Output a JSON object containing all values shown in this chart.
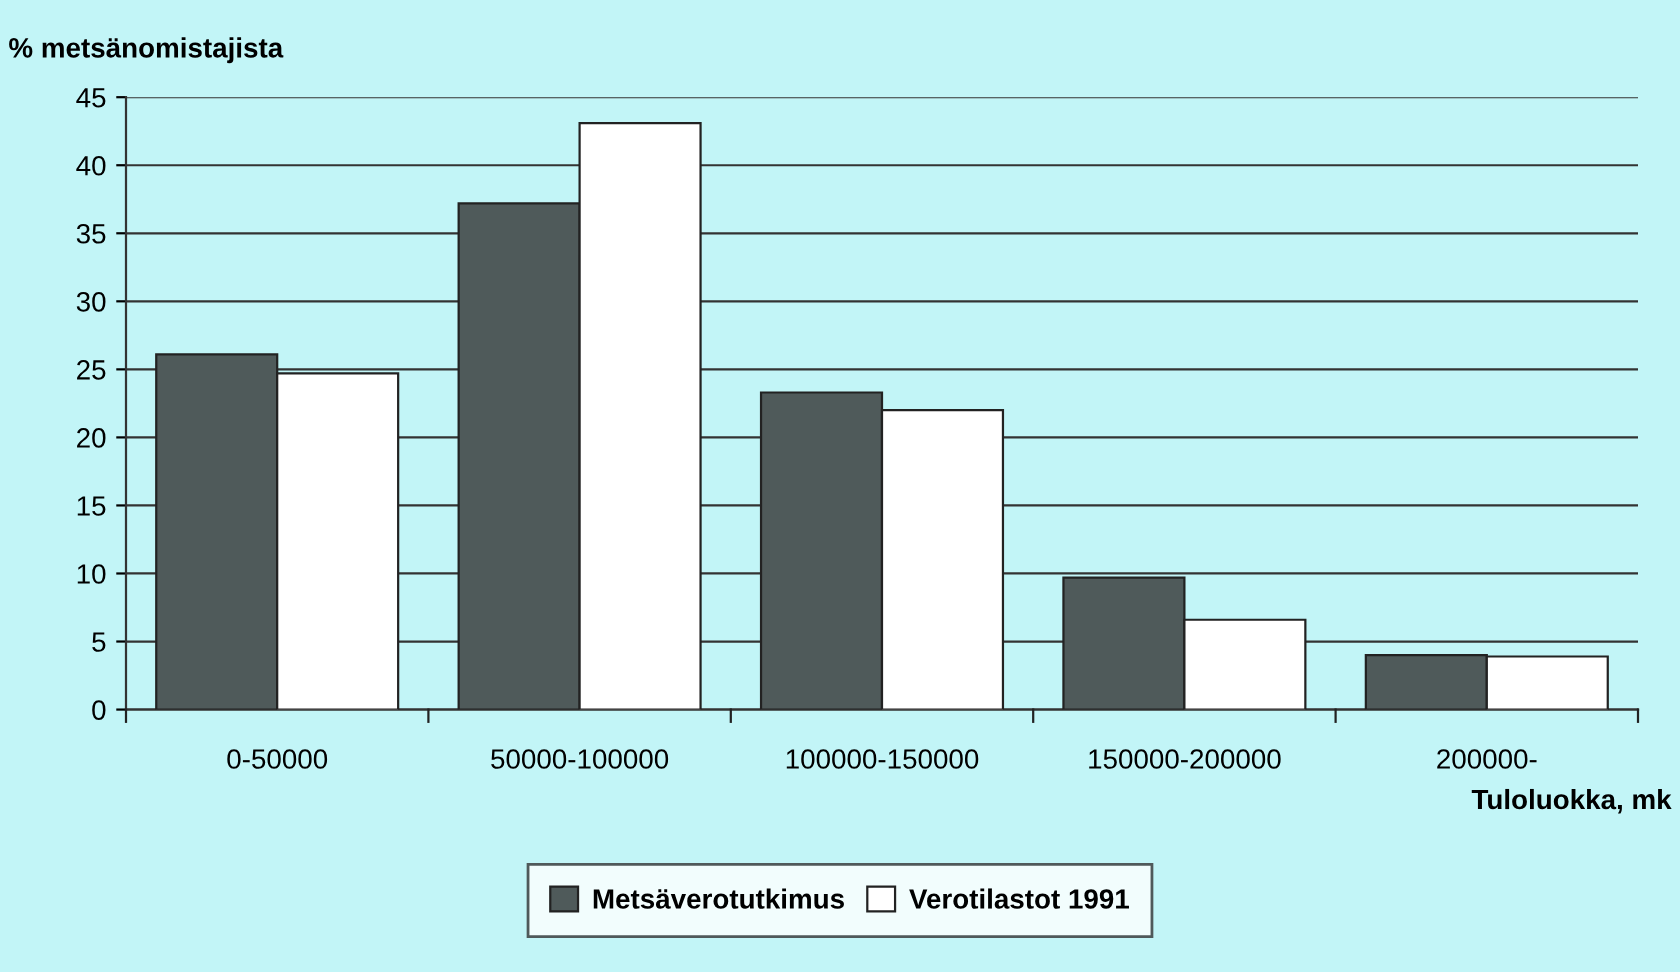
{
  "chart_data": {
    "type": "bar",
    "ylabel": "% metsänomistajista",
    "xlabel": "Tuloluokka, mk",
    "categories": [
      "0-50000",
      "50000-100000",
      "100000-150000",
      "150000-200000",
      "200000-"
    ],
    "series": [
      {
        "name": "Metsäverotutkimus",
        "color": "#4f5a5a",
        "values": [
          26.1,
          37.2,
          23.3,
          9.7,
          4.0
        ]
      },
      {
        "name": "Verotilastot 1991",
        "color": "#ffffff",
        "values": [
          24.7,
          43.1,
          22.0,
          6.6,
          3.9
        ]
      }
    ],
    "ylim": [
      0,
      45
    ],
    "yticks": [
      0,
      5,
      10,
      15,
      20,
      25,
      30,
      35,
      40,
      45
    ],
    "grid": "y",
    "legend": "bottom"
  }
}
